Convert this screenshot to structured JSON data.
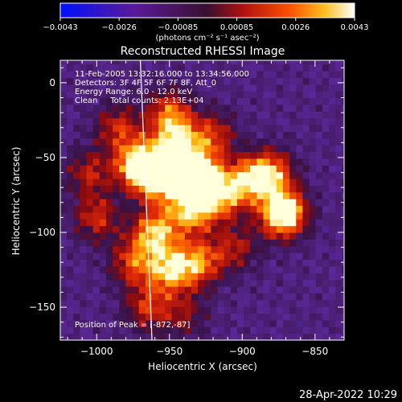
{
  "colorbar": {
    "ticks": [
      "-0.0043",
      "-0.0026",
      "-0.00085",
      "0.00085",
      "0.0026",
      "0.0043"
    ],
    "units": "(photons cm⁻² s⁻¹ asec⁻²)"
  },
  "chart_data": {
    "type": "heatmap",
    "title": "Reconstructed RHESSI Image",
    "xlabel": "Heliocentric X (arcsec)",
    "ylabel": "Heliocentric Y (arcsec)",
    "xlim": [
      -1025,
      -830
    ],
    "ylim": [
      -172,
      15
    ],
    "x_ticks": [
      -1000,
      -950,
      -900,
      -850
    ],
    "x_tick_labels": [
      "−1000",
      "−950",
      "−900",
      "−850"
    ],
    "y_ticks": [
      0,
      -50,
      -100,
      -150
    ],
    "y_tick_labels": [
      "0",
      "−50",
      "−100",
      "−150"
    ],
    "value_range": [
      -0.0043,
      0.0043
    ],
    "colormap": "blue-purple-red-yellow-white",
    "annotations": [
      "11-Feb-2005 13:32:16.000 to 13:34:56.000",
      "Detectors: 3F 4F 5F 6F 7F 8F, Att_0",
      "Energy Range: 6.0 - 12.0 keV",
      "Clean     Total counts: 2.13E+04"
    ],
    "peak_label": "Position of Peak = [-872,-87]",
    "peak": [
      -872,
      -87
    ],
    "limb_line": [
      [
        -970,
        15
      ],
      [
        -962,
        -172
      ]
    ],
    "sources": [
      {
        "x": -970,
        "y": -55,
        "amp": 0.0043
      },
      {
        "x": -955,
        "y": -65,
        "amp": 0.0032
      },
      {
        "x": -945,
        "y": -40,
        "amp": 0.003
      },
      {
        "x": -930,
        "y": -60,
        "amp": 0.0033
      },
      {
        "x": -935,
        "y": -85,
        "amp": 0.003
      },
      {
        "x": -915,
        "y": -75,
        "amp": 0.0028
      },
      {
        "x": -895,
        "y": -65,
        "amp": 0.0025
      },
      {
        "x": -872,
        "y": -87,
        "amp": 0.0043
      },
      {
        "x": -880,
        "y": -60,
        "amp": 0.0025
      },
      {
        "x": -960,
        "y": -100,
        "amp": 0.003
      },
      {
        "x": -950,
        "y": -125,
        "amp": 0.0028
      },
      {
        "x": -930,
        "y": -120,
        "amp": 0.0025
      },
      {
        "x": -975,
        "y": -120,
        "amp": 0.002
      },
      {
        "x": -1000,
        "y": -90,
        "amp": 0.0018
      },
      {
        "x": -1005,
        "y": -60,
        "amp": 0.0016
      },
      {
        "x": -985,
        "y": -30,
        "amp": 0.0018
      },
      {
        "x": -950,
        "y": -20,
        "amp": 0.0022
      },
      {
        "x": -920,
        "y": -35,
        "amp": 0.0018
      },
      {
        "x": -905,
        "y": -110,
        "amp": 0.0015
      },
      {
        "x": -965,
        "y": -150,
        "amp": 0.0018
      },
      {
        "x": -940,
        "y": -155,
        "amp": 0.0012
      }
    ]
  },
  "timestamp": "28-Apr-2022 10:29"
}
